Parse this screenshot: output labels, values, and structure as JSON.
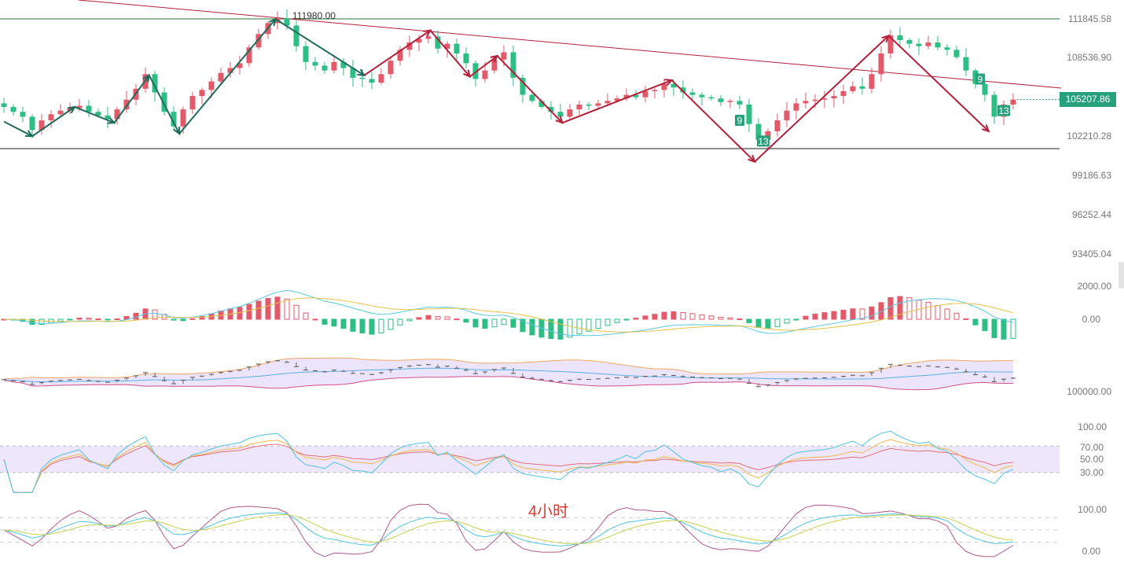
{
  "timeframe_label": "4小时",
  "current_price": "105207.86",
  "peak_label": "111980.00",
  "colors": {
    "up": "#e05a6a",
    "down": "#2ebd85",
    "zigzag_green": "#1f6b5a",
    "zigzag_red": "#b3203a",
    "trendline": "#b3203a",
    "price_tag": "#26a17b"
  },
  "price_axis": [
    "111845.58",
    "108536.90",
    "105207.86",
    "102210.28",
    "99186.63",
    "96252.44",
    "93405.04"
  ],
  "macd_axis": [
    "2000.00",
    "0.00"
  ],
  "boll_axis": [
    "100000.00"
  ],
  "rsi_axis": [
    "100.00",
    "70.00",
    "50.00",
    "30.00"
  ],
  "kdj_axis": [
    "100.00",
    "0.00"
  ],
  "chart_data": {
    "type": "candlestick",
    "closes": [
      104600,
      104200,
      103800,
      102700,
      103500,
      104000,
      104300,
      104500,
      104700,
      104200,
      103900,
      103600,
      104400,
      105200,
      106100,
      107300,
      105800,
      104200,
      103000,
      104400,
      105500,
      106000,
      106700,
      107400,
      107800,
      108200,
      109500,
      110600,
      111500,
      111900,
      111300,
      109600,
      108300,
      108000,
      107600,
      108300,
      107800,
      107000,
      106900,
      106600,
      107300,
      108400,
      109300,
      109900,
      110200,
      110400,
      109400,
      109800,
      109000,
      108200,
      106900,
      107600,
      108500,
      109100,
      107000,
      105600,
      105100,
      104600,
      104200,
      103800,
      104400,
      104800,
      104700,
      104900,
      105100,
      105300,
      105600,
      105400,
      105900,
      106000,
      106500,
      106200,
      105800,
      105600,
      105400,
      105300,
      105000,
      105100,
      104800,
      103200,
      101900,
      102600,
      103500,
      104300,
      104900,
      105100,
      105200,
      105300,
      105500,
      105900,
      106300,
      106100,
      107300,
      109000,
      110500,
      110100,
      109800,
      109600,
      109900,
      109500,
      109300,
      108700,
      107600,
      106500,
      105600,
      103800,
      104800,
      105207.86
    ],
    "horizontal_levels": [
      111845.58,
      101175
    ],
    "trendline": [
      [
        7.9,
        113398
      ],
      [
        112.1,
        106155
      ]
    ],
    "zigzag_green": [
      [
        0,
        103400
      ],
      [
        3,
        102200
      ],
      [
        7.5,
        104600
      ],
      [
        11.7,
        103300
      ],
      [
        15.4,
        107200
      ],
      [
        18.6,
        102400
      ],
      [
        28.8,
        111830
      ],
      [
        38.2,
        107200
      ]
    ],
    "zigzag_red": [
      [
        38.2,
        107200
      ],
      [
        45.2,
        110900
      ],
      [
        49.4,
        107100
      ],
      [
        52.3,
        108800
      ],
      [
        59.2,
        103300
      ],
      [
        70.8,
        106800
      ],
      [
        79.6,
        100100
      ],
      [
        93.8,
        110460
      ],
      [
        104.4,
        102600
      ]
    ],
    "td_markers": [
      {
        "index": 78,
        "price": 103500,
        "text": "9"
      },
      {
        "index": 80.5,
        "price": 101800,
        "text": "13"
      },
      {
        "index": 103.5,
        "price": 106900,
        "text": "9"
      },
      {
        "index": 106,
        "price": 104300,
        "text": "13"
      }
    ],
    "indicators": [
      "MACD",
      "BOLL",
      "RSI",
      "KDJ"
    ]
  }
}
